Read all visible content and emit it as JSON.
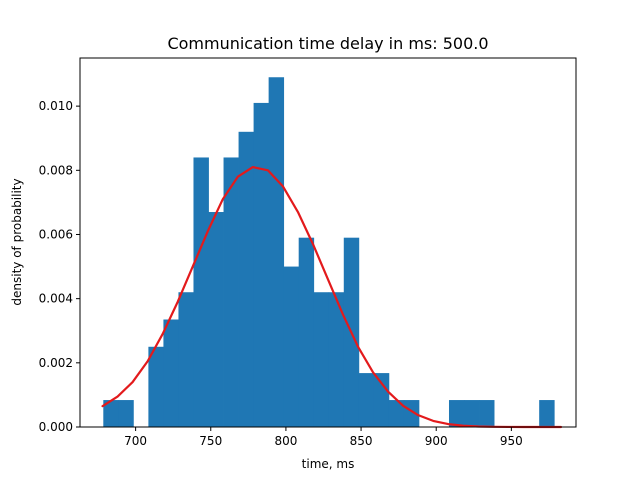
{
  "chart_data": {
    "type": "bar",
    "title": "Communication time delay in ms: 500.0",
    "xlabel": "time, ms",
    "ylabel": "density of probability",
    "xlim": [
      663,
      993
    ],
    "ylim": [
      0,
      0.0115
    ],
    "xticks": [
      {
        "value": 700,
        "label": "700"
      },
      {
        "value": 750,
        "label": "750"
      },
      {
        "value": 800,
        "label": "800"
      },
      {
        "value": 850,
        "label": "850"
      },
      {
        "value": 900,
        "label": "900"
      },
      {
        "value": 950,
        "label": "950"
      }
    ],
    "yticks": [
      {
        "value": 0.0,
        "label": "0.000"
      },
      {
        "value": 0.002,
        "label": "0.002"
      },
      {
        "value": 0.004,
        "label": "0.004"
      },
      {
        "value": 0.006,
        "label": "0.006"
      },
      {
        "value": 0.008,
        "label": "0.008"
      },
      {
        "value": 0.01,
        "label": "0.010"
      }
    ],
    "grid": false,
    "histogram": {
      "color": "#1f77b4",
      "bins": [
        {
          "x0": 678.5,
          "x1": 688.5,
          "value": 0.00084
        },
        {
          "x0": 688.5,
          "x1": 698.5,
          "value": 0.00084
        },
        {
          "x0": 698.5,
          "x1": 708.5,
          "value": 0.0
        },
        {
          "x0": 708.5,
          "x1": 718.5,
          "value": 0.0025
        },
        {
          "x0": 718.5,
          "x1": 728.5,
          "value": 0.00335
        },
        {
          "x0": 728.5,
          "x1": 738.5,
          "value": 0.0042
        },
        {
          "x0": 738.5,
          "x1": 748.5,
          "value": 0.0084
        },
        {
          "x0": 748.5,
          "x1": 758.5,
          "value": 0.0067
        },
        {
          "x0": 758.5,
          "x1": 768.5,
          "value": 0.0084
        },
        {
          "x0": 768.5,
          "x1": 778.5,
          "value": 0.0092
        },
        {
          "x0": 778.5,
          "x1": 788.5,
          "value": 0.0101
        },
        {
          "x0": 788.5,
          "x1": 798.5,
          "value": 0.0109
        },
        {
          "x0": 798.5,
          "x1": 808.5,
          "value": 0.005
        },
        {
          "x0": 808.5,
          "x1": 818.5,
          "value": 0.0059
        },
        {
          "x0": 818.5,
          "x1": 828.5,
          "value": 0.0042
        },
        {
          "x0": 828.5,
          "x1": 838.5,
          "value": 0.0042
        },
        {
          "x0": 838.5,
          "x1": 848.5,
          "value": 0.0059
        },
        {
          "x0": 848.5,
          "x1": 858.5,
          "value": 0.00168
        },
        {
          "x0": 858.5,
          "x1": 868.5,
          "value": 0.00168
        },
        {
          "x0": 868.5,
          "x1": 878.5,
          "value": 0.00084
        },
        {
          "x0": 878.5,
          "x1": 888.5,
          "value": 0.00084
        },
        {
          "x0": 888.5,
          "x1": 898.5,
          "value": 0.0
        },
        {
          "x0": 898.5,
          "x1": 908.5,
          "value": 0.0
        },
        {
          "x0": 908.5,
          "x1": 918.5,
          "value": 0.00084
        },
        {
          "x0": 918.5,
          "x1": 928.5,
          "value": 0.00084
        },
        {
          "x0": 928.5,
          "x1": 938.5,
          "value": 0.00084
        },
        {
          "x0": 938.5,
          "x1": 948.5,
          "value": 0.0
        },
        {
          "x0": 948.5,
          "x1": 958.5,
          "value": 0.0
        },
        {
          "x0": 958.5,
          "x1": 968.5,
          "value": 0.0
        },
        {
          "x0": 968.5,
          "x1": 978.5,
          "value": 0.00084
        }
      ]
    },
    "fit_curve": {
      "type": "line",
      "color": "#e31a1c",
      "x": [
        678,
        688,
        698,
        708,
        718,
        728,
        738,
        748,
        758,
        768,
        778,
        788,
        798,
        808,
        818,
        828,
        838,
        848,
        858,
        868,
        878,
        888,
        898,
        908,
        918,
        928,
        938,
        948,
        958,
        968,
        978,
        983
      ],
      "y": [
        0.00065,
        0.00095,
        0.0014,
        0.00205,
        0.0029,
        0.0039,
        0.005,
        0.0061,
        0.0071,
        0.0078,
        0.0081,
        0.008,
        0.0075,
        0.0067,
        0.0057,
        0.0046,
        0.0035,
        0.0025,
        0.0017,
        0.0011,
        0.00066,
        0.00037,
        0.00019,
        9e-05,
        4e-05,
        1.6e-05,
        6e-06,
        2e-06,
        7e-07,
        2e-07,
        6e-08,
        3e-08
      ]
    }
  }
}
